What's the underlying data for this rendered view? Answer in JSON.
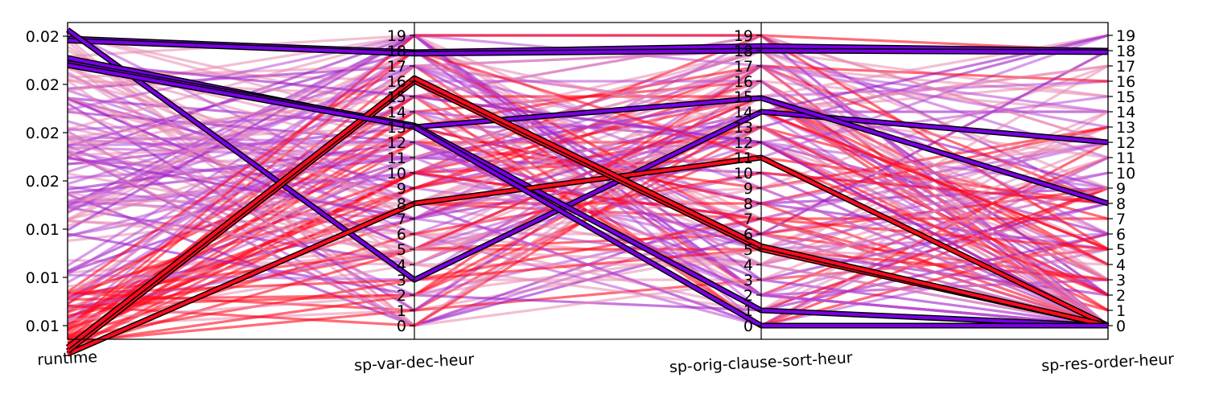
{
  "chart_data": {
    "type": "parallel-coordinates",
    "title": "",
    "axes": [
      {
        "name": "runtime",
        "ticks": [
          "0.02",
          "0.02",
          "0.02",
          "0.02",
          "0.01",
          "0.01",
          "0.01"
        ],
        "range": [
          0.01,
          0.02
        ]
      },
      {
        "name": "sp-var-dec-heur",
        "ticks": [
          "0",
          "1",
          "2",
          "3",
          "4",
          "5",
          "6",
          "7",
          "8",
          "9",
          "10",
          "11",
          "12",
          "13",
          "14",
          "15",
          "16",
          "17",
          "18",
          "19"
        ],
        "range": [
          0,
          19
        ]
      },
      {
        "name": "sp-orig-clause-sort-heur",
        "ticks": [
          "0",
          "1",
          "2",
          "3",
          "4",
          "5",
          "6",
          "7",
          "8",
          "9",
          "10",
          "11",
          "12",
          "13",
          "14",
          "15",
          "16",
          "17",
          "18",
          "19"
        ],
        "range": [
          0,
          19
        ]
      },
      {
        "name": "sp-res-order-heur",
        "ticks": [
          "0",
          "1",
          "2",
          "3",
          "4",
          "5",
          "6",
          "7",
          "8",
          "9",
          "10",
          "11",
          "12",
          "13",
          "14",
          "15",
          "16",
          "17",
          "18",
          "19"
        ],
        "range": [
          0,
          19
        ]
      }
    ],
    "colors": {
      "fast": "#7a00e6",
      "mid": "#b84ad6",
      "slow": "#ff0a1e",
      "faint": "#e88ab0",
      "highlight_outline": "#000000"
    },
    "series_note_colors": [
      "purple",
      "magenta",
      "red"
    ],
    "highlighted": [
      {
        "color": "#7a00e6",
        "values": [
          0.01992,
          17.9,
          18.3,
          18.0
        ]
      },
      {
        "color": "#7a00e6",
        "values": [
          0.01985,
          17.8,
          18.0,
          17.9
        ]
      },
      {
        "color": "#7a00e6",
        "values": [
          0.02022,
          3.0,
          14.0,
          12.0
        ]
      },
      {
        "color": "#7a00e6",
        "values": [
          0.01925,
          13.0,
          14.9,
          8.0
        ]
      },
      {
        "color": "#7a00e6",
        "values": [
          0.01908,
          13.1,
          1.0,
          0.0
        ]
      },
      {
        "color": "#ff0a1e",
        "values": [
          0.00902,
          8.0,
          11.0,
          0.0
        ]
      },
      {
        "color": "#ff0a1e",
        "values": [
          0.00912,
          16.0,
          5.0,
          0.0
        ]
      },
      {
        "color": "#ff0a1e",
        "values": [
          0.00925,
          16.2,
          5.2,
          0.0
        ]
      },
      {
        "color": "#7a00e6",
        "values": [
          0.019,
          13.0,
          0.0,
          0.0
        ]
      }
    ]
  }
}
